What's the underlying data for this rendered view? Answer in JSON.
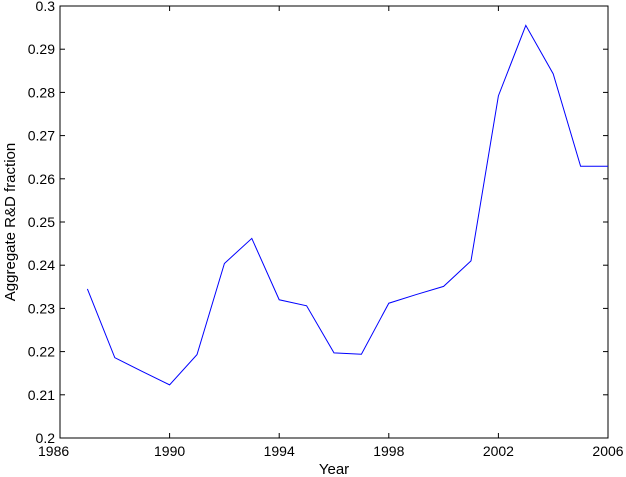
{
  "chart_data": {
    "type": "line",
    "title": "",
    "xlabel": "Year",
    "ylabel": "Aggregate R&D fraction",
    "xlim": [
      1986,
      2006
    ],
    "ylim": [
      0.2,
      0.3
    ],
    "xticks": [
      1986,
      1990,
      1994,
      1998,
      2002,
      2006
    ],
    "xtick_labels": [
      "1986",
      "1990",
      "1994",
      "1998",
      "2002",
      "2006"
    ],
    "yticks": [
      0.2,
      0.21,
      0.22,
      0.23,
      0.24,
      0.25,
      0.26,
      0.27,
      0.28,
      0.29,
      0.3
    ],
    "ytick_labels": [
      "0.2",
      "0.21",
      "0.22",
      "0.23",
      "0.24",
      "0.25",
      "0.26",
      "0.27",
      "0.28",
      "0.29",
      "0.3"
    ],
    "grid": false,
    "series": [
      {
        "color": "#0000ff",
        "x": [
          1987,
          1988,
          1989,
          1990,
          1991,
          1992,
          1993,
          1994,
          1995,
          1996,
          1997,
          1998,
          1999,
          2000,
          2001,
          2002,
          2003,
          2004,
          2005,
          2006
        ],
        "y": [
          0.2345,
          0.2186,
          0.2154,
          0.2123,
          0.2193,
          0.2404,
          0.2462,
          0.232,
          0.2306,
          0.2197,
          0.2194,
          0.2312,
          0.2332,
          0.2351,
          0.241,
          0.2792,
          0.2955,
          0.2843,
          0.2629,
          0.2629
        ]
      }
    ]
  }
}
